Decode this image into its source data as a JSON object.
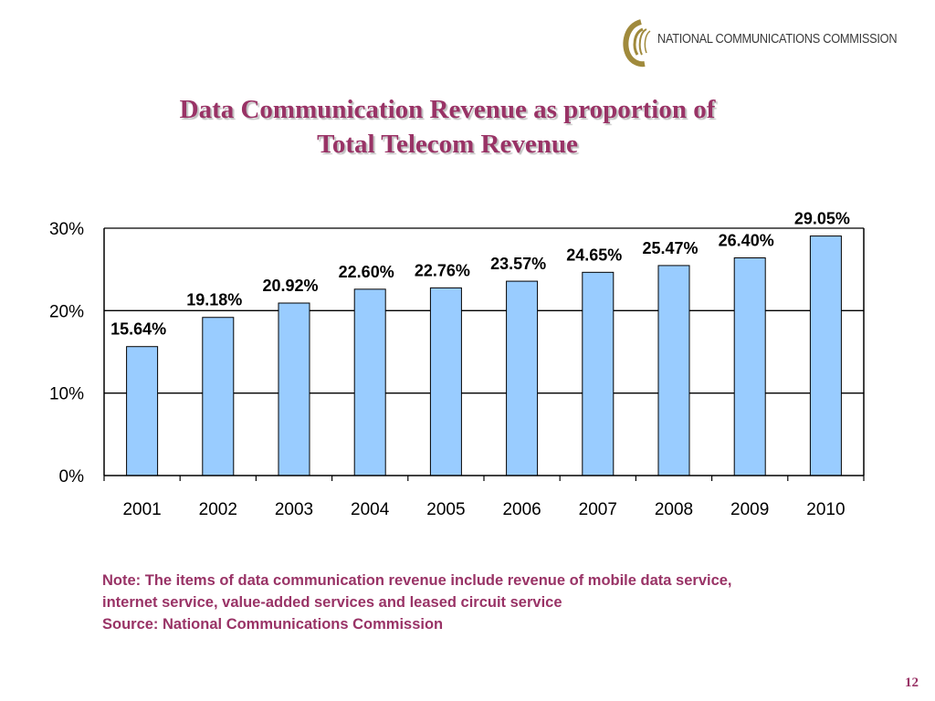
{
  "header": {
    "logo_text": "NATIONAL COMMUNICATIONS COMMISSION",
    "logo_color": "#a08a3c"
  },
  "slide": {
    "title_line1": "Data Communication Revenue as proportion of",
    "title_line2": "Total Telecom Revenue",
    "title_color": "#993366",
    "note_line1": "Note: The items of data communication revenue include revenue of mobile data service,",
    "note_line2": "internet service, value-added services and leased circuit service",
    "source": "Source: National Communications Commission",
    "page_number": "12"
  },
  "chart_data": {
    "type": "bar",
    "title": "",
    "xlabel": "",
    "ylabel": "",
    "categories": [
      "2001",
      "2002",
      "2003",
      "2004",
      "2005",
      "2006",
      "2007",
      "2008",
      "2009",
      "2010"
    ],
    "values": [
      15.64,
      19.18,
      20.92,
      22.6,
      22.76,
      23.57,
      24.65,
      25.47,
      26.4,
      29.05
    ],
    "data_labels": [
      "15.64%",
      "19.18%",
      "20.92%",
      "22.60%",
      "22.76%",
      "23.57%",
      "24.65%",
      "25.47%",
      "26.40%",
      "29.05%"
    ],
    "ylim": [
      0,
      30
    ],
    "yticks": [
      0,
      10,
      20,
      30
    ],
    "ytick_labels": [
      "0%",
      "10%",
      "20%",
      "30%"
    ],
    "grid": true,
    "legend": "none",
    "bar_color": "#99ccff"
  }
}
